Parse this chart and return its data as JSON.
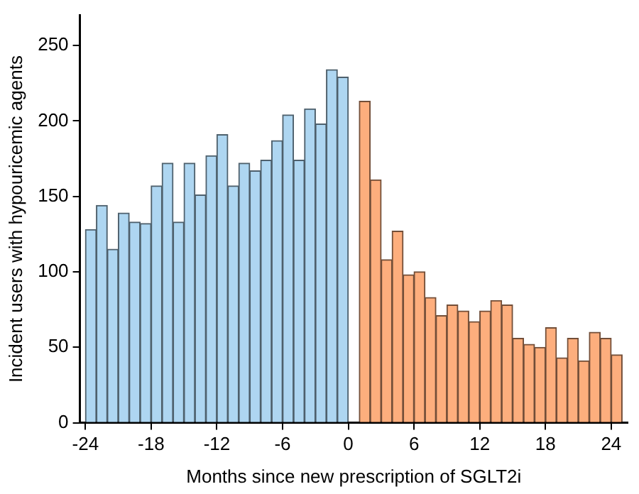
{
  "chart_data": {
    "type": "histogram",
    "xlabel": "Months since new prescription of SGLT2i",
    "ylabel": "Incident users with hypouricemic agents",
    "bins": [
      -24,
      -23,
      -22,
      -21,
      -20,
      -19,
      -18,
      -17,
      -16,
      -15,
      -14,
      -13,
      -12,
      -11,
      -10,
      -9,
      -8,
      -7,
      -6,
      -5,
      -4,
      -3,
      -2,
      -1,
      0,
      1,
      2,
      3,
      4,
      5,
      6,
      7,
      8,
      9,
      10,
      11,
      12,
      13,
      14,
      15,
      16,
      17,
      18,
      19,
      20,
      21,
      22,
      23,
      24,
      25
    ],
    "values": [
      128,
      144,
      115,
      139,
      133,
      132,
      157,
      172,
      133,
      172,
      151,
      177,
      191,
      157,
      172,
      167,
      174,
      187,
      204,
      174,
      208,
      198,
      234,
      229,
      null,
      213,
      161,
      108,
      127,
      98,
      100,
      83,
      71,
      78,
      74,
      67,
      74,
      81,
      78,
      56,
      52,
      50,
      63,
      43,
      56,
      41,
      60,
      56,
      45
    ],
    "colors": [
      "#aed6f1",
      "#aed6f1",
      "#aed6f1",
      "#aed6f1",
      "#aed6f1",
      "#aed6f1",
      "#aed6f1",
      "#aed6f1",
      "#aed6f1",
      "#aed6f1",
      "#aed6f1",
      "#aed6f1",
      "#aed6f1",
      "#aed6f1",
      "#aed6f1",
      "#aed6f1",
      "#aed6f1",
      "#aed6f1",
      "#aed6f1",
      "#aed6f1",
      "#aed6f1",
      "#aed6f1",
      "#aed6f1",
      "#aed6f1",
      null,
      "#fdae7d",
      "#fdae7d",
      "#fdae7d",
      "#fdae7d",
      "#fdae7d",
      "#fdae7d",
      "#fdae7d",
      "#fdae7d",
      "#fdae7d",
      "#fdae7d",
      "#fdae7d",
      "#fdae7d",
      "#fdae7d",
      "#fdae7d",
      "#fdae7d",
      "#fdae7d",
      "#fdae7d",
      "#fdae7d",
      "#fdae7d",
      "#fdae7d",
      "#fdae7d",
      "#fdae7d",
      "#fdae7d",
      "#fdae7d"
    ],
    "xlim": [
      -24.5,
      25.5
    ],
    "xticks": [
      -24,
      -18,
      -12,
      -6,
      0,
      6,
      12,
      18,
      24
    ],
    "ylim": [
      0,
      270
    ],
    "yticks": [
      0,
      50,
      100,
      150,
      200,
      250
    ],
    "grid": false,
    "legend": false
  }
}
